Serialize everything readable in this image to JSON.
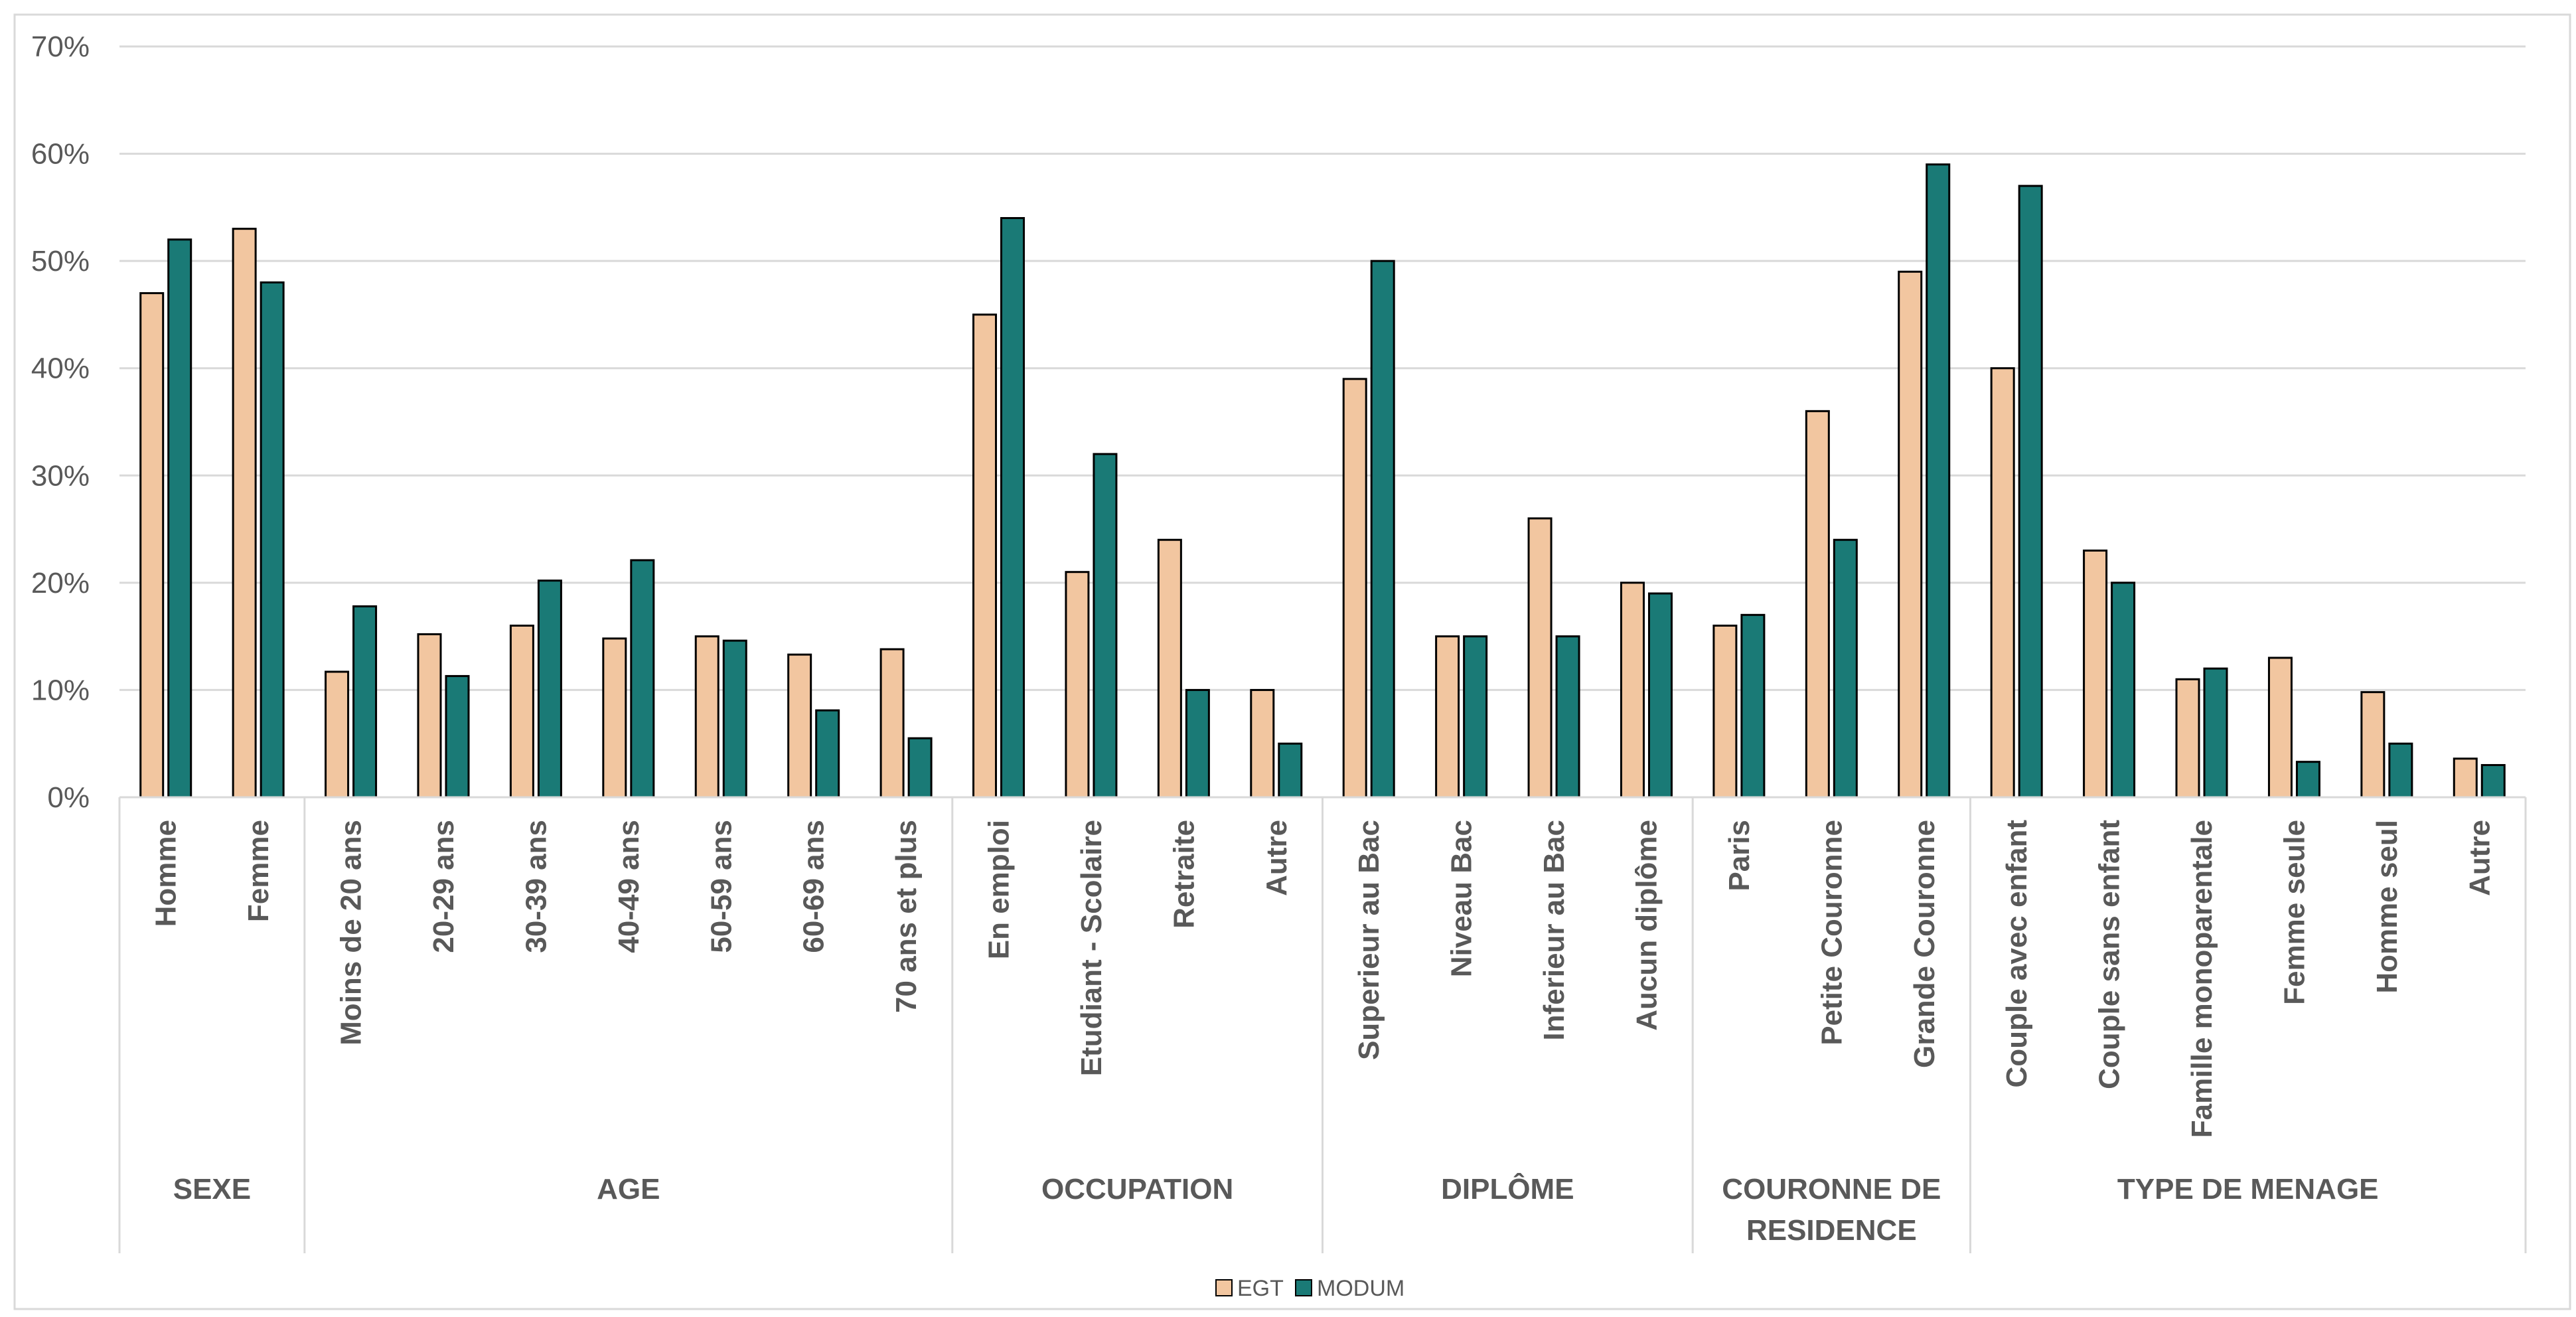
{
  "chart_data": {
    "type": "bar",
    "ylim": [
      0,
      70
    ],
    "y_ticks": [
      "0%",
      "10%",
      "20%",
      "30%",
      "40%",
      "50%",
      "60%",
      "70%"
    ],
    "grid": true,
    "legend_position": "bottom",
    "colors": {
      "EGT": "#F2C6A0",
      "MODUM": "#1A7A76"
    },
    "groups": [
      {
        "label": "SEXE",
        "label_lines": [
          "SEXE"
        ],
        "categories": [
          "Homme",
          "Femme"
        ]
      },
      {
        "label": "AGE",
        "label_lines": [
          "AGE"
        ],
        "categories": [
          "Moins de 20 ans",
          "20-29 ans",
          "30-39 ans",
          "40-49 ans",
          "50-59 ans",
          "60-69 ans",
          "70 ans et plus"
        ]
      },
      {
        "label": "OCCUPATION",
        "label_lines": [
          "OCCUPATION"
        ],
        "categories": [
          "En emploi",
          "Etudiant - Scolaire",
          "Retraite",
          "Autre"
        ]
      },
      {
        "label": "DIPLÔME",
        "label_lines": [
          "DIPLÔME"
        ],
        "categories": [
          "Superieur au Bac",
          "Niveau Bac",
          "Inferieur au Bac",
          "Aucun diplôme"
        ]
      },
      {
        "label": "COURONNE DE RESIDENCE",
        "label_lines": [
          "COURONNE DE",
          "RESIDENCE"
        ],
        "categories": [
          "Paris",
          "Petite Couronne",
          "Grande Couronne"
        ]
      },
      {
        "label": "TYPE DE MENAGE",
        "label_lines": [
          "TYPE DE MENAGE"
        ],
        "categories": [
          "Couple avec enfant",
          "Couple sans enfant",
          "Famille monoparentale",
          "Femme seule",
          "Homme seul",
          "Autre"
        ]
      }
    ],
    "series": [
      {
        "name": "EGT",
        "values": [
          47,
          53,
          11.7,
          15.2,
          16,
          14.8,
          15,
          13.3,
          13.8,
          45,
          21,
          24,
          10,
          39,
          15,
          26,
          20,
          16,
          36,
          49,
          40,
          23,
          11,
          13,
          9.8,
          3.6
        ]
      },
      {
        "name": "MODUM",
        "values": [
          52,
          48,
          17.8,
          11.3,
          20.2,
          22.1,
          14.6,
          8.1,
          5.5,
          54,
          32,
          10,
          5,
          50,
          15,
          15,
          19,
          17,
          24,
          59,
          57,
          20,
          12,
          3.3,
          5,
          3
        ]
      }
    ]
  }
}
